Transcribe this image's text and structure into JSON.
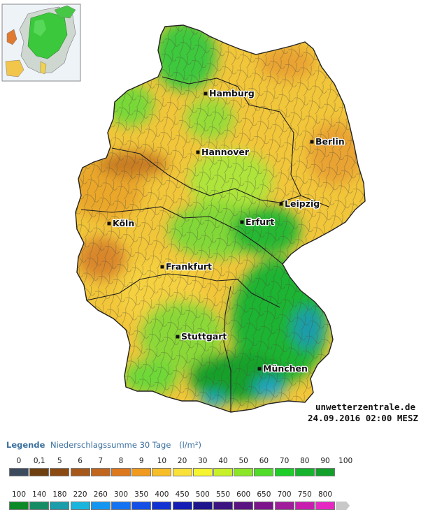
{
  "map": {
    "cities": [
      {
        "name": "Hamburg"
      },
      {
        "name": "Berlin"
      },
      {
        "name": "Hannover"
      },
      {
        "name": "Leipzig"
      },
      {
        "name": "Köln"
      },
      {
        "name": "Erfurt"
      },
      {
        "name": "Frankfurt"
      },
      {
        "name": "Stuttgart"
      },
      {
        "name": "München"
      }
    ],
    "source": "unwetterzentrale.de",
    "timestamp": "24.09.2016 02:00 MESZ"
  },
  "legend": {
    "title_word": "Legende",
    "title_text": "Niederschlagssumme 30 Tage",
    "unit": "(l/m²)",
    "row1": [
      {
        "label": "0",
        "color": "#3c4a5e"
      },
      {
        "label": "0,1",
        "color": "#6e3f10"
      },
      {
        "label": "5",
        "color": "#8a4a12"
      },
      {
        "label": "6",
        "color": "#a5581a"
      },
      {
        "label": "7",
        "color": "#c0661e"
      },
      {
        "label": "8",
        "color": "#dc781e"
      },
      {
        "label": "9",
        "color": "#f09a20"
      },
      {
        "label": "10",
        "color": "#f8be28"
      },
      {
        "label": "20",
        "color": "#fae13a"
      },
      {
        "label": "30",
        "color": "#f4f52e"
      },
      {
        "label": "40",
        "color": "#c8f028"
      },
      {
        "label": "50",
        "color": "#8ce628"
      },
      {
        "label": "60",
        "color": "#50dc28"
      },
      {
        "label": "70",
        "color": "#1ecd28"
      },
      {
        "label": "80",
        "color": "#16b42d"
      },
      {
        "label": "90",
        "color": "#12a02a"
      },
      {
        "label": "100",
        "color": ""
      }
    ],
    "row2": [
      {
        "label": "100",
        "color": "#0d8a28"
      },
      {
        "label": "140",
        "color": "#168c64"
      },
      {
        "label": "180",
        "color": "#1a9caa"
      },
      {
        "label": "220",
        "color": "#1ab4dc"
      },
      {
        "label": "260",
        "color": "#1496f0"
      },
      {
        "label": "300",
        "color": "#1473f0"
      },
      {
        "label": "350",
        "color": "#1450e6"
      },
      {
        "label": "400",
        "color": "#1432d2"
      },
      {
        "label": "450",
        "color": "#141eb4"
      },
      {
        "label": "500",
        "color": "#1e148c"
      },
      {
        "label": "550",
        "color": "#3c1482"
      },
      {
        "label": "600",
        "color": "#5a1482"
      },
      {
        "label": "650",
        "color": "#7d148c"
      },
      {
        "label": "700",
        "color": "#a01e9b"
      },
      {
        "label": "750",
        "color": "#c81eaf"
      },
      {
        "label": "800",
        "color": "#e628c3"
      },
      {
        "label": "",
        "color": "#c8c8c8"
      }
    ]
  }
}
